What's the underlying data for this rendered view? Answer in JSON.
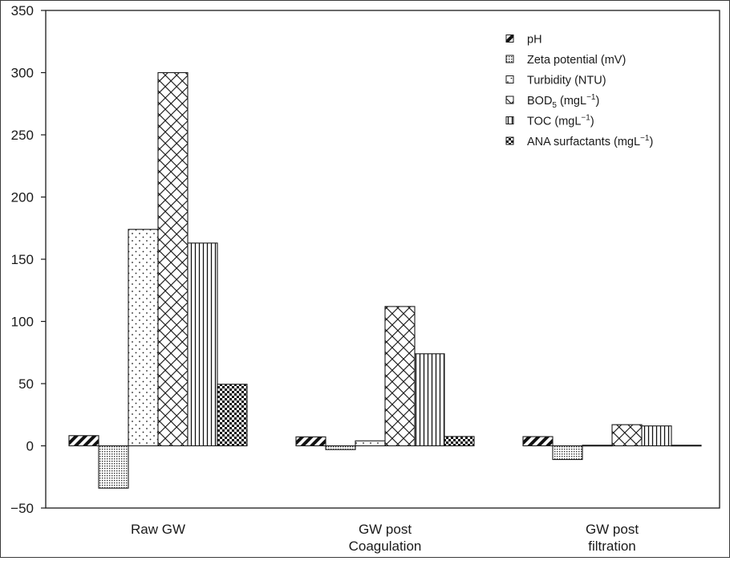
{
  "chart_data": {
    "type": "bar",
    "categories": [
      [
        "Raw GW"
      ],
      [
        "GW post",
        "Coagulation"
      ],
      [
        "GW post",
        "filtration"
      ]
    ],
    "series": [
      {
        "name": "pH",
        "name_sub": "",
        "name_post": "",
        "name_sup": "",
        "name_end": "",
        "pattern": "diag-hatch",
        "values": [
          8.2,
          7.2,
          7.4
        ]
      },
      {
        "name": "Zeta potential (mV)",
        "name_sub": "",
        "name_post": "",
        "name_sup": "",
        "name_end": "",
        "pattern": "fine-dots",
        "values": [
          -34,
          -3,
          -11
        ]
      },
      {
        "name": "Turbidity (NTU)",
        "name_sub": "",
        "name_post": "",
        "name_sup": "",
        "name_end": "",
        "pattern": "sparse-dots",
        "values": [
          174,
          4,
          0.5
        ]
      },
      {
        "name": "BOD",
        "name_sub": "5",
        "name_post": " (mgL",
        "name_sup": "−1",
        "name_end": ")",
        "pattern": "cross-hatch",
        "values": [
          300,
          112,
          17
        ]
      },
      {
        "name": "TOC (mgL",
        "name_sub": "",
        "name_post": "",
        "name_sup": "−1",
        "name_end": ")",
        "pattern": "vertical-lines",
        "values": [
          163,
          74,
          16
        ]
      },
      {
        "name": "ANA surfactants (mgL",
        "name_sub": "",
        "name_post": "",
        "name_sup": "−1",
        "name_end": ")",
        "pattern": "heavy-dots",
        "values": [
          49.5,
          7.5,
          0.5
        ]
      }
    ],
    "ylim": [
      -50,
      350
    ],
    "yticks": [
      -50,
      0,
      50,
      100,
      150,
      200,
      250,
      300,
      350
    ],
    "grid": false,
    "legend_position": "top-right"
  }
}
